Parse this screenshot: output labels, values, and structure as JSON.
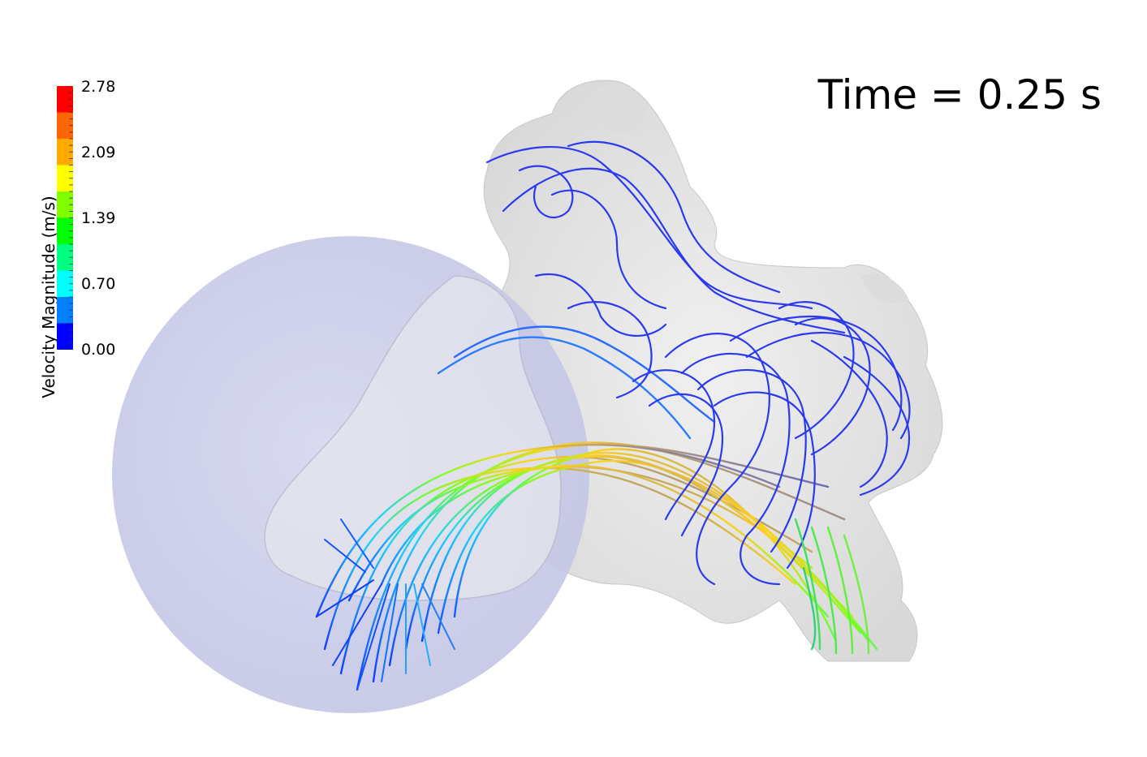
{
  "scene": {
    "time_label": "Time = 0.25 s",
    "background_color": "#ffffff",
    "surface_color": "#e6e6e6",
    "sphere_color": "#c9cbe8"
  },
  "colorbar": {
    "title": "Velocity Magnitude (m/s)",
    "min": 0.0,
    "max": 2.78,
    "tick_labels": [
      "2.78",
      "2.09",
      "1.39",
      "0.70",
      "0.00"
    ],
    "colormap": [
      "#0000ff",
      "#0080ff",
      "#00ffff",
      "#00ff80",
      "#00ff00",
      "#80ff00",
      "#ffff00",
      "#ffaa00",
      "#ff6600",
      "#ff0000"
    ]
  }
}
